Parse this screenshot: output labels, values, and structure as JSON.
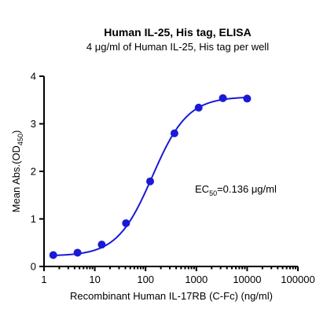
{
  "chart_data": {
    "type": "scatter",
    "title": "Human IL-25, His tag, ELISA",
    "subtitle": "4 μg/ml of Human IL-25, His tag per well",
    "xlabel": "Recombinant Human IL-17RB (C-Fc) (ng/ml)",
    "ylabel_main": "Mean Abs.(OD",
    "ylabel_sub": "450",
    "ylabel_end": ")",
    "x_scale": "log",
    "xlim": [
      1,
      100000
    ],
    "ylim": [
      0,
      4
    ],
    "x_ticks": [
      1,
      10,
      100,
      1000,
      10000,
      100000
    ],
    "x_tick_labels": [
      "1",
      "10",
      "100",
      "1000",
      "10000",
      "100000"
    ],
    "y_ticks": [
      0,
      1,
      2,
      3,
      4
    ],
    "y_tick_labels": [
      "0",
      "1",
      "2",
      "3",
      "4"
    ],
    "grid": false,
    "series": [
      {
        "x": [
          1.52,
          4.57,
          13.7,
          41.2,
          123,
          370,
          1111,
          3333,
          10000
        ],
        "y": [
          0.24,
          0.29,
          0.46,
          0.91,
          1.79,
          2.8,
          3.34,
          3.54,
          3.53
        ]
      }
    ],
    "fit_curve": {
      "type": "4PL",
      "bottom": 0.22,
      "top": 3.57,
      "ec50": 136,
      "hill": 1.25
    },
    "annotation": {
      "prefix": "EC",
      "sub": "50",
      "suffix": "=0.136 μg/ml"
    },
    "color": "#1a1ad6"
  }
}
